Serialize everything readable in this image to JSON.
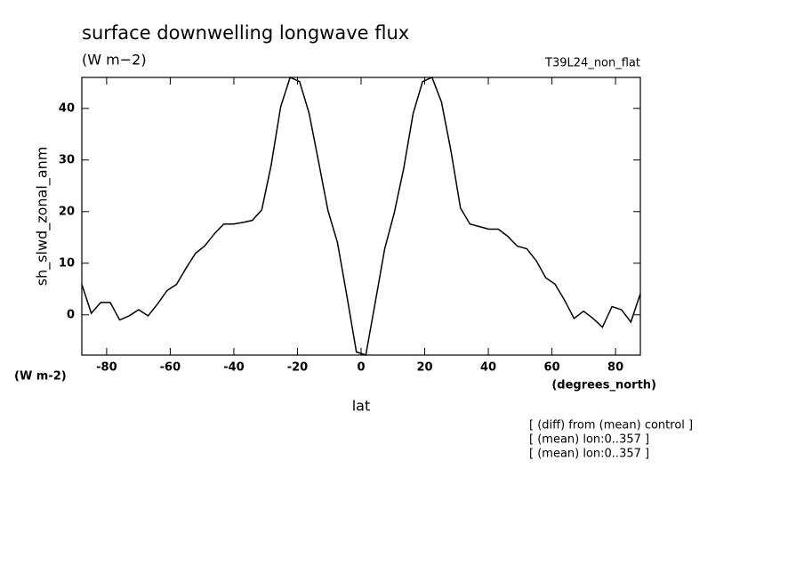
{
  "chart_data": {
    "type": "line",
    "title": "surface downwelling longwave flux",
    "units": "(W m−2)",
    "run_label": "T39L24_non_flat",
    "ylabel": "sh_slwd_zonal_anm",
    "y_units_label": "(W m-2)",
    "x_units_label": "(degrees_north)",
    "xlabel": "lat",
    "notes": [
      "[ (diff) from (mean) control ]",
      "[ (mean) lon:0..357 ]",
      "[ (mean) lon:0..357 ]"
    ],
    "color": "#000000",
    "x": [
      -87.8,
      -84.82,
      -81.85,
      -78.87,
      -75.89,
      -72.92,
      -69.94,
      -66.96,
      -63.99,
      -61.01,
      -58.03,
      -55.06,
      -52.08,
      -49.1,
      -46.13,
      -43.15,
      -40.17,
      -37.2,
      -34.22,
      -31.24,
      -28.27,
      -25.29,
      -22.31,
      -19.34,
      -16.36,
      -13.38,
      -10.41,
      -7.43,
      -4.45,
      -1.48,
      1.48,
      4.45,
      7.43,
      10.41,
      13.38,
      16.36,
      19.34,
      22.31,
      25.29,
      28.27,
      31.24,
      34.22,
      37.2,
      40.17,
      43.15,
      46.13,
      49.1,
      52.08,
      55.06,
      58.03,
      61.01,
      63.99,
      66.96,
      69.94,
      72.92,
      75.89,
      78.87,
      81.85,
      84.82,
      87.8
    ],
    "values": [
      5.9,
      0.3,
      2.4,
      2.4,
      -1.0,
      -0.2,
      1.0,
      -0.2,
      2.1,
      4.7,
      5.9,
      9.0,
      11.9,
      13.4,
      15.7,
      17.6,
      17.6,
      17.9,
      18.3,
      20.3,
      29.0,
      40.3,
      46.0,
      45.2,
      39.1,
      29.7,
      20.2,
      14.0,
      3.6,
      -7.2,
      -7.8,
      2.4,
      12.8,
      19.7,
      28.3,
      39.0,
      45.2,
      46.0,
      41.2,
      31.7,
      20.7,
      17.6,
      17.1,
      16.6,
      16.6,
      15.2,
      13.3,
      12.8,
      10.5,
      7.2,
      5.9,
      2.8,
      -0.7,
      0.7,
      -0.7,
      -2.4,
      1.6,
      1.0,
      -1.4,
      4.1
    ],
    "xlim": [
      -87.8,
      87.8
    ],
    "ylim": [
      -7.8,
      46
    ],
    "xticks": [
      -80,
      -60,
      -40,
      -20,
      0,
      20,
      40,
      60,
      80
    ],
    "yticks": [
      0,
      10,
      20,
      30,
      40
    ]
  }
}
